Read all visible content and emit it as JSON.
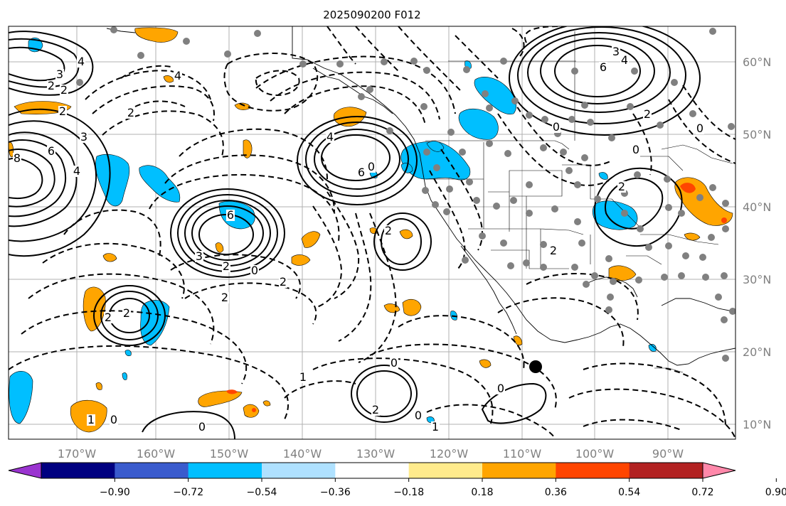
{
  "title": "2025090200 F012",
  "lon_labels": [
    "170°W",
    "160°W",
    "150°W",
    "140°W",
    "130°W",
    "120°W",
    "110°W",
    "100°W",
    "90°W"
  ],
  "lat_labels": [
    "60°N",
    "50°N",
    "40°N",
    "30°N",
    "20°N",
    "10°N"
  ],
  "colorbar": {
    "tick_labels": [
      "−0.90",
      "−0.72",
      "−0.54",
      "−0.36",
      "−0.18",
      "0.18",
      "0.36",
      "0.54",
      "0.72",
      "0.90"
    ],
    "colors": [
      "#9a34d0",
      "#000080",
      "#3a5bcd",
      "#00bfff",
      "#afe1ff",
      "#ffffff",
      "#ffeb8c",
      "#ffa500",
      "#ff4500",
      "#b22222",
      "#ff88aa"
    ]
  },
  "colors": {
    "positive_fill": "#ffa500",
    "negative_fill": "#00bfff",
    "strong_positive": "#ff4500",
    "contour": "#000000",
    "grid": "#b0b0b0",
    "station": "#808080",
    "geo_label": "#808080"
  },
  "contour_labels": [
    {
      "text": "2"
    },
    {
      "text": "3"
    },
    {
      "text": "4"
    },
    {
      "text": "2"
    },
    {
      "text": "6"
    },
    {
      "text": "8"
    },
    {
      "text": "4"
    },
    {
      "text": "3"
    },
    {
      "text": "2"
    },
    {
      "text": "6"
    },
    {
      "text": "3"
    },
    {
      "text": "2"
    },
    {
      "text": "0"
    },
    {
      "text": "2"
    },
    {
      "text": "2"
    },
    {
      "text": "4"
    },
    {
      "text": "6"
    },
    {
      "text": "4"
    },
    {
      "text": "2"
    },
    {
      "text": "2"
    },
    {
      "text": "2"
    },
    {
      "text": "2"
    },
    {
      "text": "0"
    },
    {
      "text": "6"
    },
    {
      "text": "3"
    },
    {
      "text": "4"
    },
    {
      "text": "2"
    },
    {
      "text": "0"
    },
    {
      "text": "0"
    },
    {
      "text": "0"
    },
    {
      "text": "2"
    },
    {
      "text": "2"
    },
    {
      "text": "0"
    },
    {
      "text": "2"
    },
    {
      "text": "0"
    },
    {
      "text": "0"
    },
    {
      "text": "1"
    },
    {
      "text": "0"
    },
    {
      "text": "1"
    },
    {
      "text": "0"
    },
    {
      "text": "1"
    }
  ]
}
